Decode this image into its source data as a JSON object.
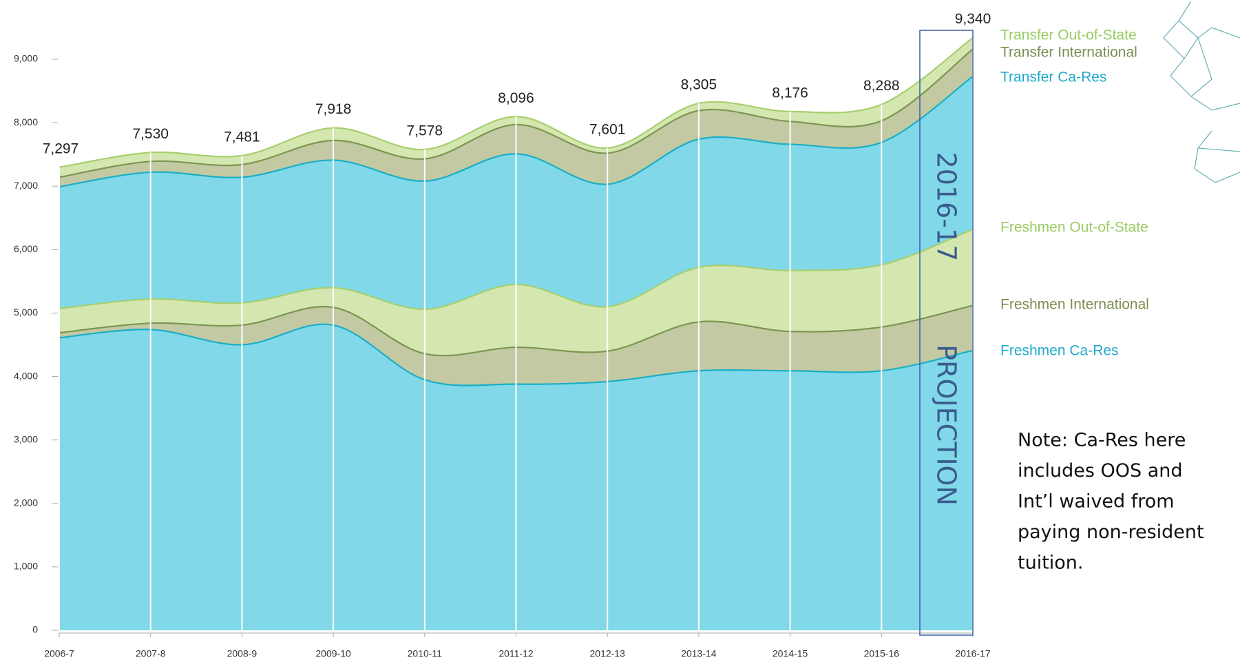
{
  "chart_data": {
    "type": "stacked-area",
    "categories": [
      "2006-7",
      "2007-8",
      "2008-9",
      "2009-10",
      "2010-11",
      "2011-12",
      "2012-13",
      "2013-14",
      "2014-15",
      "2015-16",
      "2016-17"
    ],
    "series": [
      {
        "name": "Freshmen Ca-Res",
        "color": "#80d8e8",
        "line_color": "#1aaec8",
        "label_color": "#22a9cc",
        "values": [
          4610,
          4740,
          4500,
          4810,
          3950,
          3880,
          3920,
          4090,
          4090,
          4090,
          4410
        ]
      },
      {
        "name": "Freshmen International",
        "color": "#c3c9a2",
        "line_color": "#7a9650",
        "label_color": "#7b8e52",
        "values": [
          80,
          100,
          310,
          280,
          410,
          580,
          480,
          770,
          620,
          690,
          710
        ]
      },
      {
        "name": "Freshmen Out-of-State",
        "color": "#d5e7b0",
        "line_color": "#a6cf6e",
        "label_color": "#9acb62",
        "values": [
          380,
          380,
          350,
          310,
          700,
          990,
          700,
          860,
          960,
          980,
          1200
        ]
      },
      {
        "name": "Transfer Ca-Res",
        "color": "#80d8e8",
        "line_color": "#1aaec8",
        "label_color": "#22a9cc",
        "values": [
          1920,
          2000,
          1980,
          2010,
          2020,
          2060,
          1930,
          2020,
          1990,
          1930,
          2410
        ]
      },
      {
        "name": "Transfer International",
        "color": "#c3c9a2",
        "line_color": "#7a9650",
        "label_color": "#7b8e52",
        "values": [
          150,
          170,
          200,
          310,
          350,
          460,
          490,
          450,
          360,
          340,
          430
        ]
      },
      {
        "name": "Transfer Out-of-State",
        "color": "#d5e7b0",
        "line_color": "#a6cf6e",
        "label_color": "#9acb62",
        "values": [
          157,
          140,
          141,
          198,
          148,
          126,
          81,
          115,
          156,
          258,
          180
        ]
      }
    ],
    "totals": [
      {
        "value": 7297,
        "label": "7,297"
      },
      {
        "value": 7530,
        "label": "7,530"
      },
      {
        "value": 7481,
        "label": "7,481"
      },
      {
        "value": 7918,
        "label": "7,918"
      },
      {
        "value": 7578,
        "label": "7,578"
      },
      {
        "value": 8096,
        "label": "8,096"
      },
      {
        "value": 7601,
        "label": "7,601"
      },
      {
        "value": 8305,
        "label": "8,305"
      },
      {
        "value": 8176,
        "label": "8,176"
      },
      {
        "value": 8288,
        "label": "8,288"
      },
      {
        "value": 9340,
        "label": "9,340"
      }
    ],
    "ylim": [
      0,
      9000
    ],
    "yticks": [
      0,
      {
        "value": 1000,
        "label": "1,000"
      },
      {
        "value": 2000,
        "label": "2,000"
      },
      {
        "value": 3000,
        "label": "3,000"
      },
      {
        "value": 4000,
        "label": "4,000"
      },
      {
        "value": 5000,
        "label": "5,000"
      },
      {
        "value": 6000,
        "label": "6,000"
      },
      {
        "value": 7000,
        "label": "7,000"
      },
      {
        "value": 8000,
        "label": "8,000"
      },
      {
        "value": 9000,
        "label": "9,000"
      }
    ],
    "projection": {
      "period": "2016-17",
      "label": "PROJECTION"
    },
    "note": [
      "Note: Ca-Res here",
      "includes OOS and",
      "Int’l waived from",
      "paying non-resident",
      "tuition."
    ]
  }
}
